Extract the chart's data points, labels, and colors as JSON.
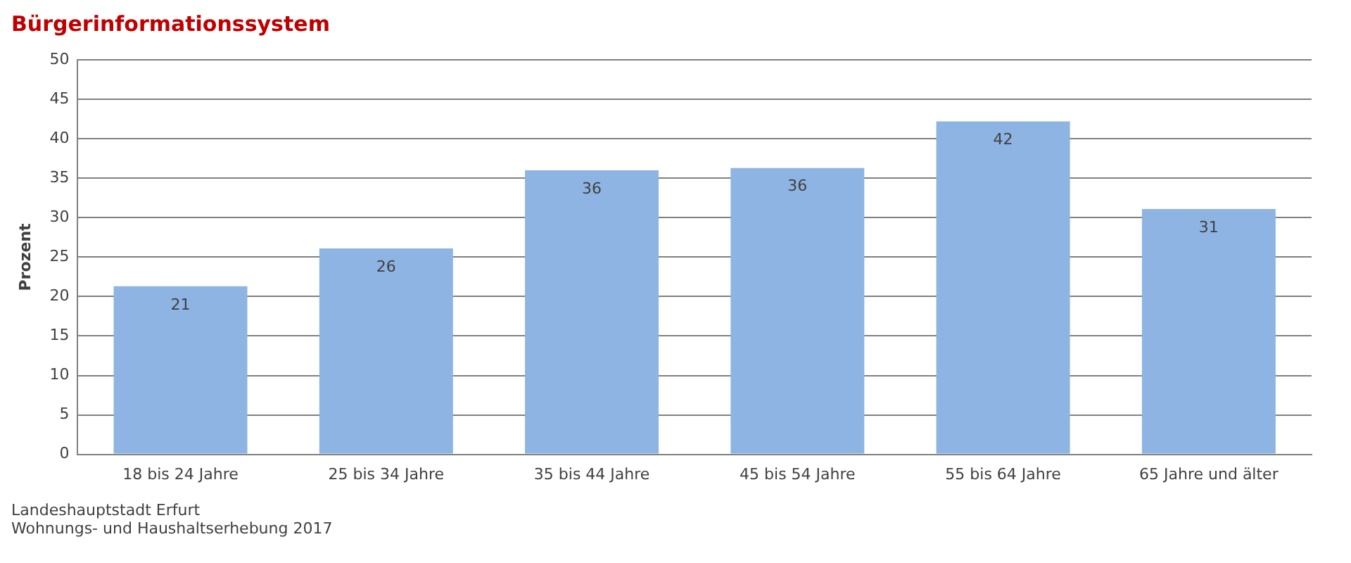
{
  "chart_data": {
    "type": "bar",
    "title": "Bürgerinformationssystem",
    "ylabel": "Prozent",
    "categories": [
      "18 bis 24 Jahre",
      "25 bis 34 Jahre",
      "35 bis 44 Jahre",
      "45 bis 54 Jahre",
      "55 bis 64 Jahre",
      "65 Jahre und älter"
    ],
    "values": [
      21.3,
      26.1,
      36.0,
      36.3,
      42.2,
      31.1
    ],
    "value_labels": [
      "21",
      "26",
      "36",
      "36",
      "42",
      "31"
    ],
    "color": "#8db4e2",
    "ylim": [
      0,
      50
    ],
    "yticks": [
      0,
      5,
      10,
      15,
      20,
      25,
      30,
      35,
      40,
      45,
      50
    ],
    "grid": "y",
    "legend": false,
    "annotations": [
      "Landeshauptstadt Erfurt",
      "Wohnungs- und Haushaltserhebung 2017"
    ]
  }
}
